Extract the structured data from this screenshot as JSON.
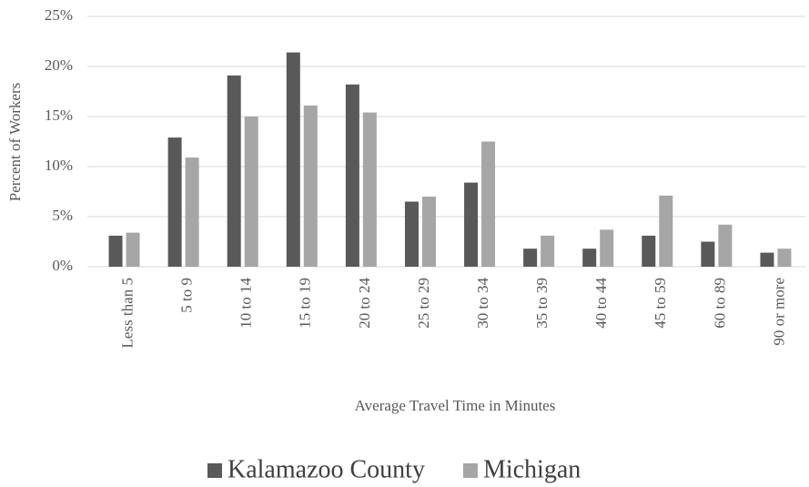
{
  "chart_data": {
    "type": "bar",
    "x_label": "Average Travel Time in Minutes",
    "y_label": "Percent of Workers",
    "categories": [
      "Less than 5",
      "5 to 9",
      "10 to 14",
      "15 to 19",
      "20 to 24",
      "25 to 29",
      "30 to 34",
      "35 to 39",
      "40 to 44",
      "45 to 59",
      "60 to 89",
      "90 or more"
    ],
    "series": [
      {
        "name": "Kalamazoo County",
        "color": "#595959",
        "values": [
          3.1,
          12.9,
          19.1,
          21.4,
          18.2,
          6.5,
          8.4,
          1.8,
          1.8,
          3.1,
          2.5,
          1.4
        ]
      },
      {
        "name": "Michigan",
        "color": "#a6a6a6",
        "values": [
          3.4,
          10.9,
          15.0,
          16.1,
          15.4,
          7.0,
          12.5,
          3.1,
          3.7,
          7.1,
          4.2,
          1.8
        ]
      }
    ],
    "ylim": [
      0,
      25
    ],
    "yticks": [
      {
        "value": 0,
        "label": "0%"
      },
      {
        "value": 5,
        "label": "5%"
      },
      {
        "value": 10,
        "label": "10%"
      },
      {
        "value": 15,
        "label": "15%"
      },
      {
        "value": 20,
        "label": "20%"
      },
      {
        "value": 25,
        "label": "25%"
      }
    ],
    "grid": true,
    "legend": "bottom"
  }
}
